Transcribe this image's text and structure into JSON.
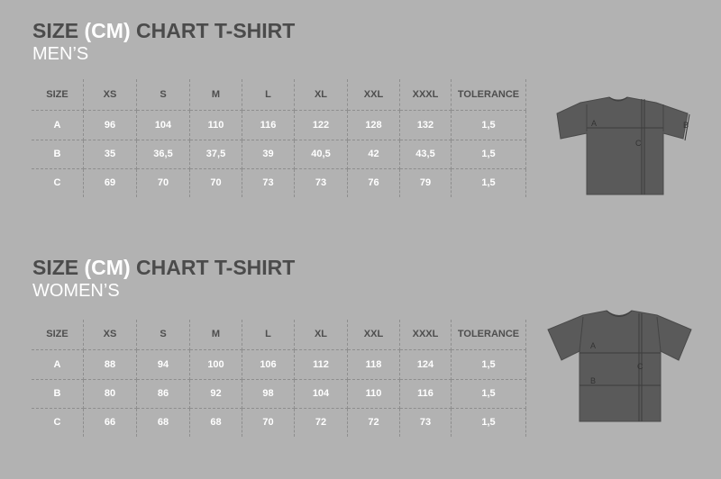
{
  "men": {
    "title_pre": "SIZE",
    "title_cm": "(CM)",
    "title_post": "CHART T-SHIRT",
    "subtitle": "MEN’S",
    "headers": [
      "SIZE",
      "XS",
      "S",
      "M",
      "L",
      "XL",
      "XXL",
      "XXXL",
      "TOLERANCE"
    ],
    "rows": [
      [
        "A",
        "96",
        "104",
        "110",
        "116",
        "122",
        "128",
        "132",
        "1,5"
      ],
      [
        "B",
        "35",
        "36,5",
        "37,5",
        "39",
        "40,5",
        "42",
        "43,5",
        "1,5"
      ],
      [
        "C",
        "69",
        "70",
        "70",
        "73",
        "73",
        "76",
        "79",
        "1,5"
      ]
    ],
    "diagram_labels": {
      "a": "A",
      "b": "B",
      "c": "C"
    }
  },
  "women": {
    "title_pre": "SIZE",
    "title_cm": "(CM)",
    "title_post": "CHART T-SHIRT",
    "subtitle": "WOMEN’S",
    "headers": [
      "SIZE",
      "XS",
      "S",
      "M",
      "L",
      "XL",
      "XXL",
      "XXXL",
      "TOLERANCE"
    ],
    "rows": [
      [
        "A",
        "88",
        "94",
        "100",
        "106",
        "112",
        "118",
        "124",
        "1,5"
      ],
      [
        "B",
        "80",
        "86",
        "92",
        "98",
        "104",
        "110",
        "116",
        "1,5"
      ],
      [
        "C",
        "66",
        "68",
        "68",
        "70",
        "72",
        "72",
        "73",
        "1,5"
      ]
    ],
    "diagram_labels": {
      "a": "A",
      "b": "B",
      "c": "C"
    }
  },
  "colors": {
    "background": "#b2b2b2",
    "title": "#4b4b4b",
    "shirt": "#5a5a5a"
  }
}
